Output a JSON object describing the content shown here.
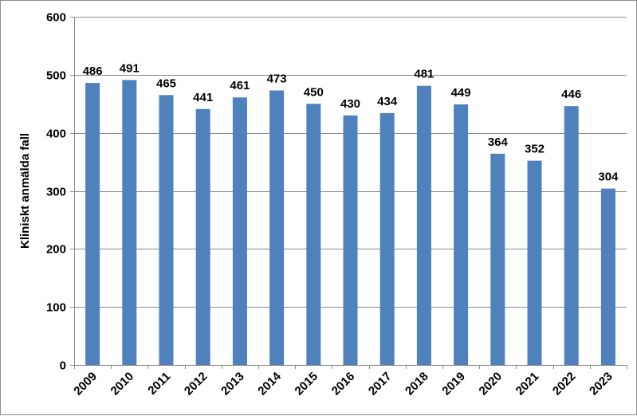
{
  "chart_data": {
    "type": "bar",
    "title": "",
    "xlabel": "",
    "ylabel": "Kliniskt anmälda fall",
    "ylim": [
      0,
      600
    ],
    "yticks": [
      0,
      100,
      200,
      300,
      400,
      500,
      600
    ],
    "grid": true,
    "legend": "none",
    "bar_color": "#4F81BD",
    "categories": [
      "2009",
      "2010",
      "2011",
      "2012",
      "2013",
      "2014",
      "2015",
      "2016",
      "2017",
      "2018",
      "2019",
      "2020",
      "2021",
      "2022",
      "2023"
    ],
    "values": [
      486,
      491,
      465,
      441,
      461,
      473,
      450,
      430,
      434,
      481,
      449,
      364,
      352,
      446,
      304
    ],
    "data_labels": [
      "486",
      "491",
      "465",
      "441",
      "461",
      "473",
      "450",
      "430",
      "434",
      "481",
      "449",
      "364",
      "352",
      "446",
      "304"
    ]
  }
}
